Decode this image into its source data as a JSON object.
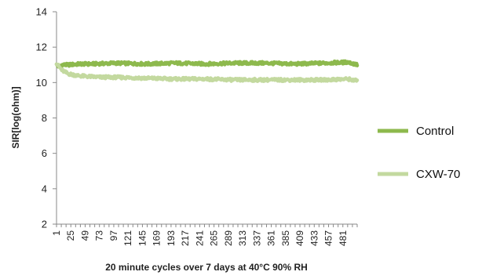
{
  "chart_data": {
    "type": "line",
    "title": "",
    "xlabel": "20 minute cycles over 7 days at 40°C 90% RH",
    "ylabel": "SIR[log(ohm)]",
    "ylim": [
      2,
      14
    ],
    "yticks": [
      2,
      4,
      6,
      8,
      10,
      12,
      14
    ],
    "xlim": [
      1,
      505
    ],
    "x_tick_labels": [
      "1",
      "25",
      "49",
      "73",
      "97",
      "121",
      "145",
      "169",
      "193",
      "217",
      "241",
      "265",
      "289",
      "313",
      "337",
      "361",
      "385",
      "409",
      "433",
      "457",
      "481"
    ],
    "x_tick_interval": 24,
    "grid": false,
    "legend_position": "right",
    "series": [
      {
        "name": "Control",
        "color": "#8db94d",
        "x": [
          1,
          5,
          10,
          20,
          40,
          60,
          100,
          150,
          200,
          250,
          300,
          350,
          400,
          450,
          490,
          505
        ],
        "y": [
          11.0,
          10.9,
          11.0,
          11.0,
          11.05,
          11.05,
          11.1,
          11.05,
          11.1,
          11.05,
          11.1,
          11.1,
          11.05,
          11.1,
          11.15,
          11.0
        ]
      },
      {
        "name": "CXW-70",
        "color": "#c3d99f",
        "x": [
          1,
          5,
          10,
          20,
          35,
          50,
          75,
          100,
          150,
          200,
          250,
          300,
          350,
          400,
          450,
          490,
          505
        ],
        "y": [
          11.1,
          10.9,
          10.7,
          10.5,
          10.4,
          10.35,
          10.3,
          10.3,
          10.25,
          10.2,
          10.2,
          10.15,
          10.15,
          10.15,
          10.15,
          10.2,
          10.1
        ]
      }
    ]
  }
}
